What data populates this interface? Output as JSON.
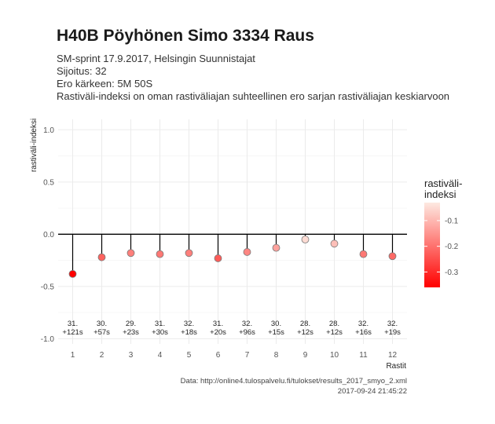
{
  "header": {
    "title": "H40B Pöyhönen Simo 3334 Raus",
    "subtitle_lines": [
      "SM-sprint 17.9.2017, Helsingin Suunnistajat",
      "Sijoitus: 32",
      "Ero kärkeen: 5M 50S",
      "Rastiväli-indeksi on oman rastiväliajan suhteellinen ero sarjan rastiväliajan keskiarvoon"
    ]
  },
  "chart_data": {
    "type": "lollipop",
    "xlabel": "Rastit",
    "ylabel": "rastiväli-indeksi",
    "ylim": [
      -1.0,
      1.0
    ],
    "yticks": [
      -1.0,
      -0.5,
      0.0,
      0.5,
      1.0
    ],
    "ytick_labels": [
      "-1.0",
      "-0.5",
      "0.0",
      "0.5",
      "1.0"
    ],
    "x": [
      1,
      2,
      3,
      4,
      5,
      6,
      7,
      8,
      9,
      10,
      11,
      12
    ],
    "values": [
      -0.38,
      -0.22,
      -0.18,
      -0.19,
      -0.18,
      -0.23,
      -0.17,
      -0.13,
      -0.05,
      -0.09,
      -0.19,
      -0.21
    ],
    "point_labels": [
      [
        "31.",
        "+121s"
      ],
      [
        "30.",
        "+57s"
      ],
      [
        "29.",
        "+23s"
      ],
      [
        "31.",
        "+30s"
      ],
      [
        "32.",
        "+18s"
      ],
      [
        "31.",
        "+20s"
      ],
      [
        "32.",
        "+96s"
      ],
      [
        "30.",
        "+15s"
      ],
      [
        "28.",
        "+12s"
      ],
      [
        "28.",
        "+12s"
      ],
      [
        "32.",
        "+16s"
      ],
      [
        "32.",
        "+19s"
      ]
    ],
    "grid": true,
    "legend": {
      "title_lines": [
        "rastiväli-",
        "indeksi"
      ],
      "ticks": [
        -0.1,
        -0.2,
        -0.3
      ],
      "tick_labels": [
        "-0.1",
        "-0.2",
        "-0.3"
      ],
      "range": [
        -0.36,
        -0.03
      ],
      "position": "right"
    },
    "colors": {
      "high": "#fde9e1",
      "low": "#ff0000",
      "panel": "#ebebeb",
      "grid_minor": "#f2f2f2"
    }
  },
  "caption": {
    "data_source": "Data: http://online4.tulospalvelu.fi/tulokset/results_2017_smyo_2.xml",
    "timestamp": "2017-09-24 21:45:22"
  }
}
